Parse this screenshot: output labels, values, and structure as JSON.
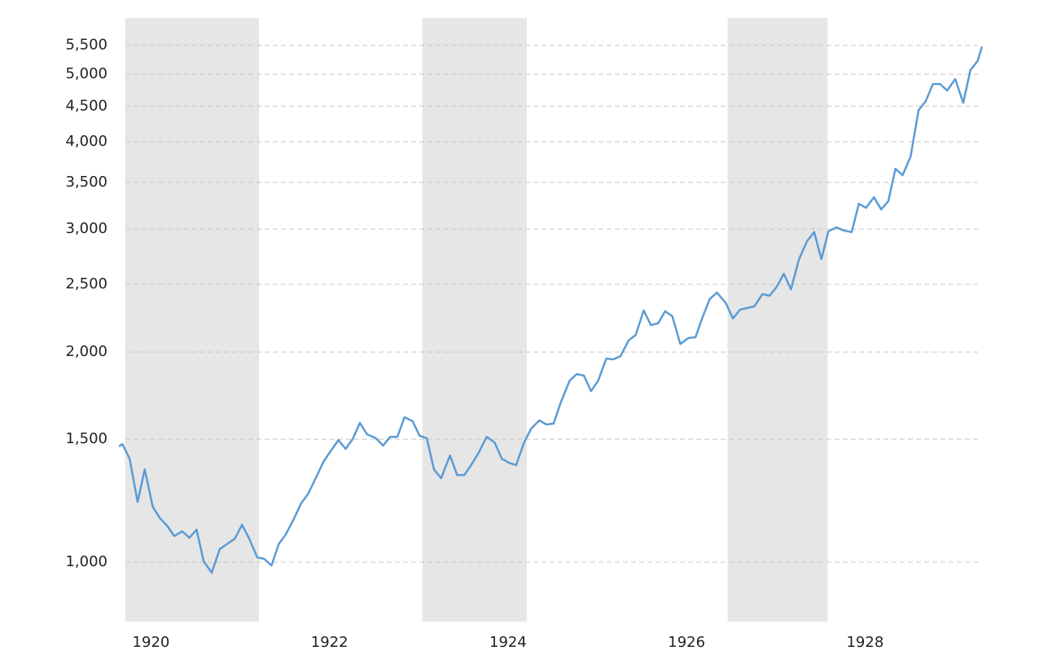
{
  "chart_data": {
    "type": "line",
    "log_scale": true,
    "grid": true,
    "xlim": [
      1919.64,
      1929.31
    ],
    "xticks": [
      1920,
      1922,
      1924,
      1926,
      1928
    ],
    "ylim": [
      822,
      6020
    ],
    "yticks": [
      {
        "value": 1000,
        "label": "1,000"
      },
      {
        "value": 1500,
        "label": "1,500"
      },
      {
        "value": 2000,
        "label": "2,000"
      },
      {
        "value": 2500,
        "label": "2,500"
      },
      {
        "value": 3000,
        "label": "3,000"
      },
      {
        "value": 3500,
        "label": "3,500"
      },
      {
        "value": 4000,
        "label": "4,000"
      },
      {
        "value": 4500,
        "label": "4,500"
      },
      {
        "value": 5000,
        "label": "5,000"
      },
      {
        "value": 5500,
        "label": "5,500"
      }
    ],
    "shaded_ranges": [
      [
        1919.71,
        1921.21
      ],
      [
        1923.04,
        1924.21
      ],
      [
        1926.46,
        1927.58
      ]
    ],
    "shade_color": "#e6e6e6",
    "x": [
      1919.64,
      1919.68,
      1919.76,
      1919.85,
      1919.93,
      1920.02,
      1920.1,
      1920.18,
      1920.26,
      1920.35,
      1920.43,
      1920.51,
      1920.59,
      1920.68,
      1920.77,
      1920.85,
      1920.94,
      1921.02,
      1921.1,
      1921.19,
      1921.27,
      1921.35,
      1921.43,
      1921.51,
      1921.6,
      1921.68,
      1921.76,
      1921.85,
      1921.93,
      1922.01,
      1922.1,
      1922.18,
      1922.26,
      1922.34,
      1922.42,
      1922.52,
      1922.6,
      1922.68,
      1922.76,
      1922.84,
      1922.93,
      1923.01,
      1923.09,
      1923.17,
      1923.25,
      1923.35,
      1923.43,
      1923.51,
      1923.59,
      1923.67,
      1923.76,
      1923.85,
      1923.93,
      1924.01,
      1924.09,
      1924.18,
      1924.26,
      1924.35,
      1924.43,
      1924.51,
      1924.59,
      1924.69,
      1924.77,
      1924.85,
      1924.93,
      1925.01,
      1925.1,
      1925.18,
      1925.26,
      1925.35,
      1925.43,
      1925.52,
      1925.6,
      1925.68,
      1925.76,
      1925.84,
      1925.93,
      1926.02,
      1926.1,
      1926.18,
      1926.26,
      1926.34,
      1926.44,
      1926.52,
      1926.6,
      1926.68,
      1926.76,
      1926.85,
      1926.93,
      1927.01,
      1927.09,
      1927.17,
      1927.26,
      1927.35,
      1927.43,
      1927.51,
      1927.59,
      1927.68,
      1927.76,
      1927.85,
      1927.93,
      1928.01,
      1928.1,
      1928.18,
      1928.26,
      1928.34,
      1928.42,
      1928.51,
      1928.6,
      1928.68,
      1928.76,
      1928.84,
      1928.92,
      1929.01,
      1929.1,
      1929.18,
      1929.26,
      1929.31
    ],
    "series": [
      {
        "color": "#5b9bd5",
        "values": [
          1465,
          1476,
          1407,
          1220,
          1358,
          1200,
          1156,
          1128,
          1090,
          1107,
          1084,
          1113,
          1003,
          966,
          1044,
          1061,
          1081,
          1131,
          1081,
          1016,
          1011,
          989,
          1061,
          1096,
          1153,
          1213,
          1253,
          1323,
          1391,
          1441,
          1496,
          1453,
          1501,
          1583,
          1525,
          1505,
          1469,
          1512,
          1512,
          1613,
          1592,
          1517,
          1505,
          1358,
          1319,
          1422,
          1333,
          1333,
          1380,
          1434,
          1512,
          1484,
          1407,
          1388,
          1377,
          1484,
          1554,
          1596,
          1575,
          1579,
          1693,
          1820,
          1860,
          1850,
          1758,
          1820,
          1957,
          1952,
          1973,
          2077,
          2116,
          2294,
          2186,
          2198,
          2288,
          2251,
          2054,
          2094,
          2100,
          2245,
          2382,
          2434,
          2350,
          2234,
          2300,
          2313,
          2325,
          2421,
          2408,
          2480,
          2589,
          2460,
          2717,
          2883,
          2970,
          2717,
          2978,
          3018,
          2986,
          2970,
          3262,
          3218,
          3332,
          3201,
          3288,
          3660,
          3583,
          3811,
          4443,
          4576,
          4841,
          4841,
          4738,
          4920,
          4551,
          5068,
          5220,
          5478
        ]
      }
    ]
  }
}
